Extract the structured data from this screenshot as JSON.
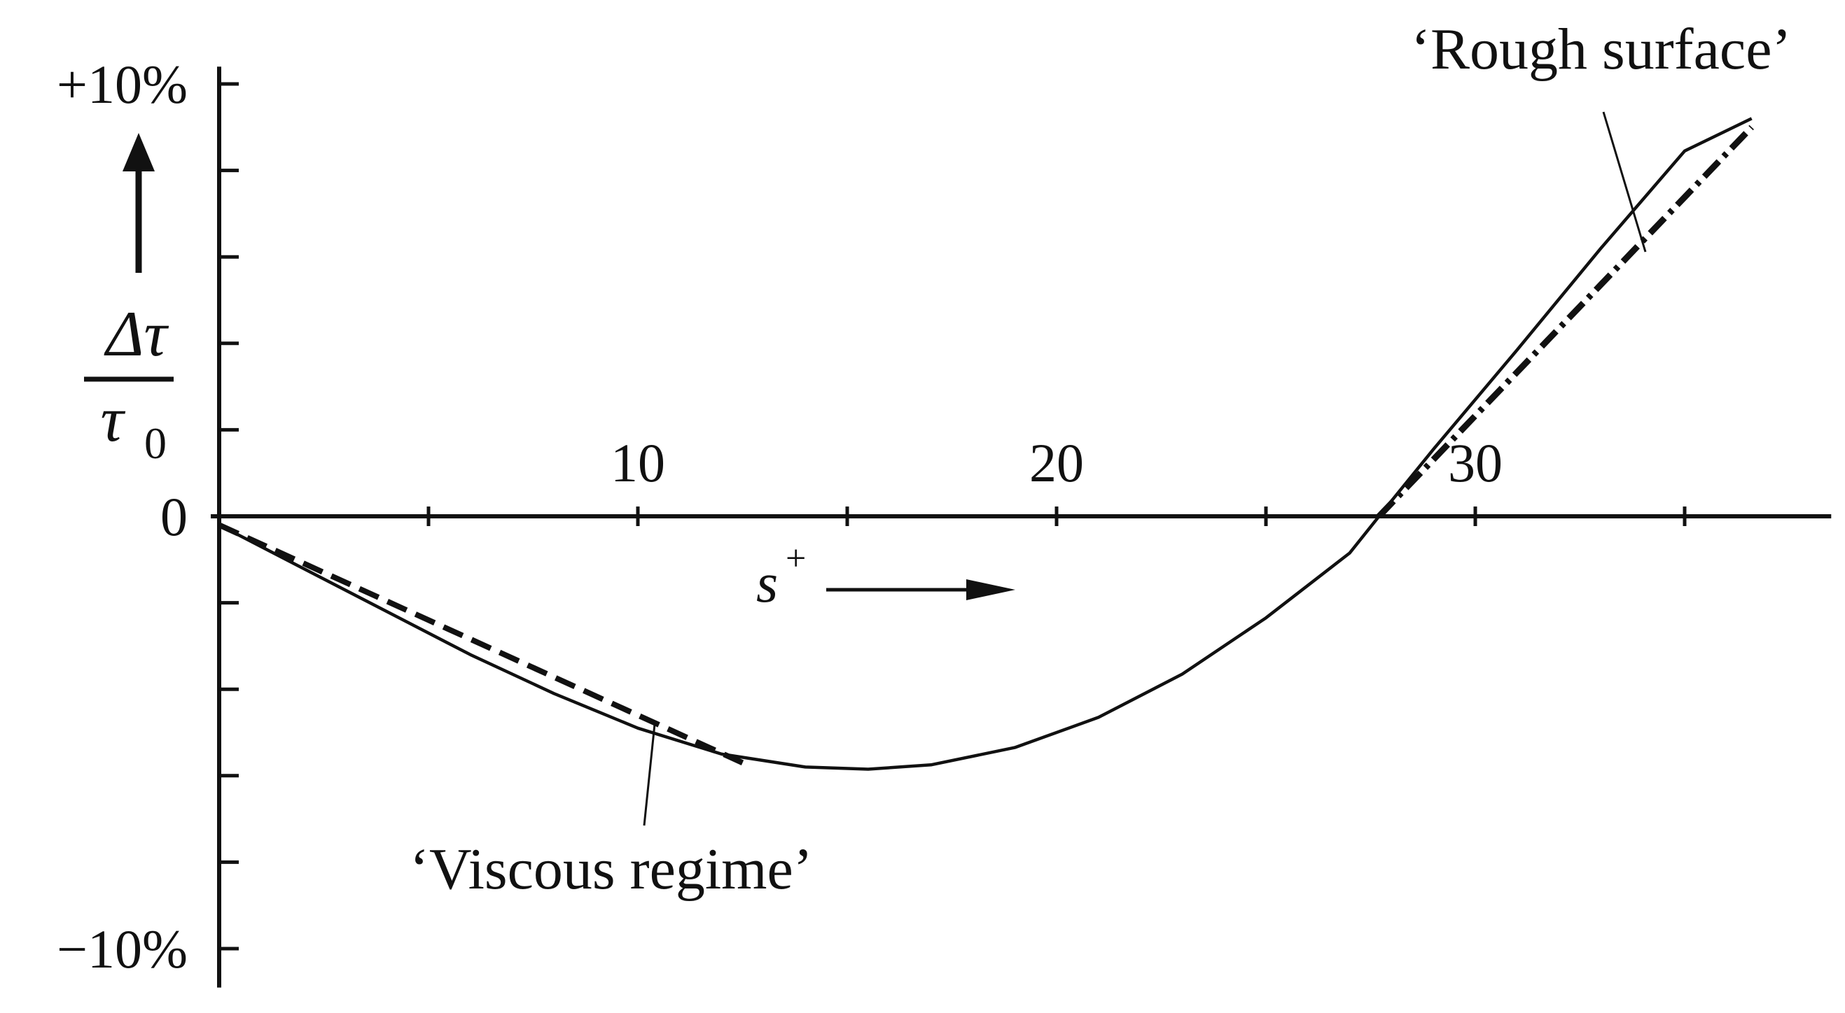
{
  "chart_data": {
    "type": "line",
    "title": "",
    "xlabel": "s",
    "xlabel_superscript": "+",
    "ylabel_numerator": "Δτ",
    "ylabel_denominator": "τ",
    "ylabel_denominator_subscript": "0",
    "xlim": [
      -0.2,
      38.5
    ],
    "ylim": [
      -10,
      10
    ],
    "x_ticks": [
      5,
      10,
      15,
      20,
      25,
      30,
      35
    ],
    "x_tick_labels": [
      {
        "x": 10,
        "label": "10"
      },
      {
        "x": 20,
        "label": "20"
      },
      {
        "x": 30,
        "label": "30"
      }
    ],
    "y_ticks": [
      -10,
      -8,
      -6,
      -4,
      -2,
      0,
      2,
      4,
      6,
      8,
      10
    ],
    "y_tick_labels": [
      {
        "y": 10,
        "label": "+10%"
      },
      {
        "y": 0,
        "label": "0"
      },
      {
        "y": -10,
        "label": "−10%"
      }
    ],
    "grid": false,
    "series": [
      {
        "key": "measured",
        "style": "solid",
        "color": "#111111",
        "points": [
          [
            0,
            -0.2
          ],
          [
            2,
            -1.2
          ],
          [
            4,
            -2.2
          ],
          [
            6,
            -3.2
          ],
          [
            8,
            -4.1
          ],
          [
            10,
            -4.9
          ],
          [
            12,
            -5.5
          ],
          [
            14,
            -5.8
          ],
          [
            15.5,
            -5.85
          ],
          [
            17,
            -5.75
          ],
          [
            19,
            -5.35
          ],
          [
            21,
            -4.65
          ],
          [
            23,
            -3.65
          ],
          [
            25,
            -2.35
          ],
          [
            27,
            -0.85
          ],
          [
            27.7,
            0
          ],
          [
            29,
            1.55
          ],
          [
            31,
            3.85
          ],
          [
            33,
            6.2
          ],
          [
            35,
            8.45
          ],
          [
            36.6,
            9.2
          ]
        ]
      },
      {
        "key": "viscous-regime",
        "style": "dashed",
        "color": "#111111",
        "points": [
          [
            0,
            -0.2
          ],
          [
            12.5,
            -5.7
          ]
        ]
      },
      {
        "key": "rough-surface",
        "style": "dash-dot",
        "color": "#111111",
        "points": [
          [
            27.7,
            0
          ],
          [
            36.6,
            9.0
          ]
        ]
      }
    ],
    "annotations": [
      {
        "key": "viscous",
        "text": "‘Viscous regime’"
      },
      {
        "key": "rough",
        "text": "‘Rough surface’"
      }
    ]
  }
}
